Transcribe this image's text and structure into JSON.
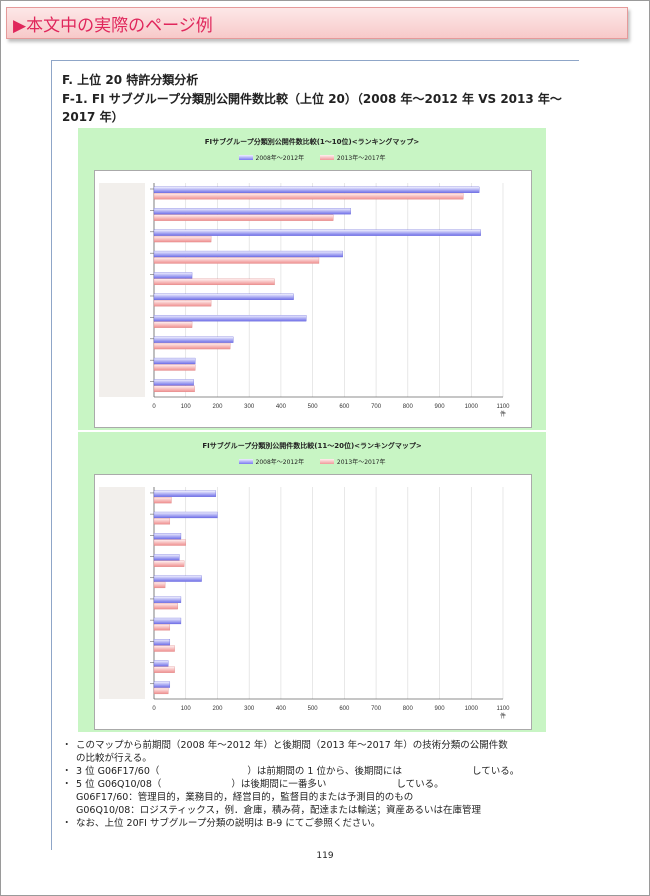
{
  "banner": {
    "title": "▶本文中の実際のページ例"
  },
  "section": {
    "heading": "F. 上位 20 特許分類分析",
    "subheading": "F-1. FI サブグループ分類別公開件数比較（上位 20）（2008 年～2012 年 VS 2013 年～2017 年）"
  },
  "chart_data": [
    {
      "type": "bar",
      "orientation": "horizontal",
      "title": "FIサブグループ分類別公開件数比較(1～10位)<ランキングマップ>",
      "unit": "件",
      "xlim": [
        0,
        1100
      ],
      "ticks": [
        0,
        100,
        200,
        300,
        400,
        500,
        600,
        700,
        800,
        900,
        1000,
        1100
      ],
      "grid": true,
      "legend_position": "top",
      "colors": {
        "series1": "#6f6fe8",
        "series2": "#ef8f8f"
      },
      "series": [
        {
          "name": "2008年～2012年",
          "values": [
            1025,
            620,
            1030,
            595,
            120,
            440,
            480,
            250,
            130,
            125
          ]
        },
        {
          "name": "2013年～2017年",
          "values": [
            975,
            565,
            180,
            520,
            380,
            180,
            120,
            240,
            130,
            128
          ]
        }
      ]
    },
    {
      "type": "bar",
      "orientation": "horizontal",
      "title": "FIサブグループ分類別公開件数比較(11～20位)<ランキングマップ>",
      "unit": "件",
      "xlim": [
        0,
        1100
      ],
      "ticks": [
        0,
        100,
        200,
        300,
        400,
        500,
        600,
        700,
        800,
        900,
        1000,
        1100
      ],
      "grid": true,
      "legend_position": "top",
      "colors": {
        "series1": "#6f6fe8",
        "series2": "#ef8f8f"
      },
      "series": [
        {
          "name": "2008年～2012年",
          "values": [
            195,
            200,
            85,
            80,
            150,
            85,
            85,
            50,
            45,
            50
          ]
        },
        {
          "name": "2013年～2017年",
          "values": [
            55,
            50,
            100,
            95,
            35,
            75,
            50,
            65,
            65,
            45
          ]
        }
      ]
    }
  ],
  "bullets": {
    "b1_line1": "このマップから前期間（2008 年～2012 年）と後期間（2013 年～2017 年）の技術分類の公開件数",
    "b1_line2": "の比較が行える。",
    "b2_a": "3 位 G06F17/60（",
    "b2_b": "）は前期間の 1 位から、後期間には",
    "b2_c": "している。",
    "b3_a": "5 位 G06Q10/08（",
    "b3_b": "）は後期間に一番多い",
    "b3_c": "している。",
    "def1": "G06F17/60：管理目的，業務目的，経営目的，監督目的または予測目的のもの",
    "def2": "G06Q10/08：ロジスティックス，例．倉庫，積み荷，配達または輸送；資産あるいは在庫管理",
    "b4": "なお、上位 20FI サブグループ分類の説明は B-9 にてご参照ください。",
    "dot": "・"
  },
  "page_number": "119"
}
